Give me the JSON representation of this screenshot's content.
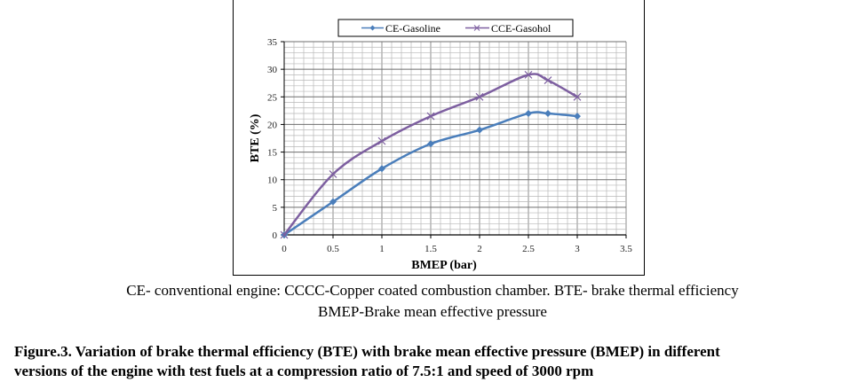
{
  "chart_data": {
    "type": "line",
    "title": "",
    "xlabel": "BMEP (bar)",
    "ylabel": "BTE (%)",
    "xlim": [
      0,
      3.5
    ],
    "ylim": [
      0,
      35
    ],
    "x_ticks": [
      "0",
      "0.5",
      "1",
      "1.5",
      "2",
      "2.5",
      "3",
      "3.5"
    ],
    "y_ticks": [
      "0",
      "5",
      "10",
      "15",
      "20",
      "25",
      "30",
      "35"
    ],
    "grid": true,
    "legend_position": "top",
    "series": [
      {
        "name": "CE-Gasoline",
        "color": "#4a7ebb",
        "marker": "diamond",
        "x": [
          0,
          0.5,
          1,
          1.5,
          2,
          2.5,
          2.7,
          3
        ],
        "y": [
          0,
          6,
          12,
          16.5,
          19,
          22,
          22,
          21.5
        ]
      },
      {
        "name": "CCE-Gasohol",
        "color": "#7d5fa0",
        "marker": "cross",
        "x": [
          0,
          0.5,
          1,
          1.5,
          2,
          2.5,
          2.7,
          3
        ],
        "y": [
          0,
          11,
          17,
          21.5,
          25,
          29,
          28,
          25
        ]
      }
    ]
  },
  "notes": {
    "line1": "CE- conventional engine:  CCCC-Copper coated combustion chamber. BTE- brake thermal efficiency",
    "line2": "BMEP-Brake mean effective pressure"
  },
  "caption": {
    "line1": "Figure.3. Variation of brake thermal efficiency (BTE) with brake mean effective pressure (BMEP) in different",
    "line2": "versions of the engine with test fuels at a compression ratio of 7.5:1 and speed of 3000 rpm"
  }
}
